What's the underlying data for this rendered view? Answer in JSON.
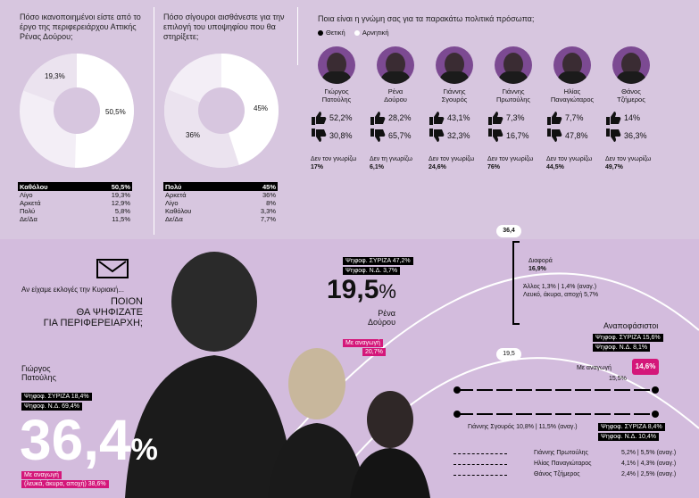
{
  "q1": {
    "question": "Πόσο ικανοποιημένοι είστε από το έργο της περιφερειάρχου Αττικής Ρένας Δούρου;",
    "pie_labels": [
      "50,5%",
      "19,3%"
    ],
    "rows": [
      {
        "label": "Καθόλου",
        "value": "50,5%"
      },
      {
        "label": "Λίγο",
        "value": "19,3%"
      },
      {
        "label": "Αρκετά",
        "value": "12,9%"
      },
      {
        "label": "Πολύ",
        "value": "5,8%"
      },
      {
        "label": "Δε/Δα",
        "value": "11,5%"
      }
    ]
  },
  "q2": {
    "question": "Πόσο σίγουροι αισθάνεστε για την επιλογή του υποψηφίου που θα στηρίξετε;",
    "pie_labels": [
      "45%",
      "36%"
    ],
    "rows": [
      {
        "label": "Πολύ",
        "value": "45%"
      },
      {
        "label": "Αρκετά",
        "value": "36%"
      },
      {
        "label": "Λίγο",
        "value": "8%"
      },
      {
        "label": "Καθόλου",
        "value": "3,3%"
      },
      {
        "label": "Δε/Δα",
        "value": "7,7%"
      }
    ]
  },
  "q3": {
    "question": "Ποια είναι η γνώμη σας για τα παρακάτω πολιτικά πρόσωπα;",
    "legend_positive": "Θετική",
    "legend_negative": "Αρνητική",
    "unknown_label": "Δεν τον γνωρίζω",
    "unknown_label_f": "Δεν τη γνωρίζω",
    "candidates": [
      {
        "name1": "Γιώργος",
        "name2": "Πατούλης",
        "pos": "52,2%",
        "neg": "30,8%",
        "unknown": "17%"
      },
      {
        "name1": "Ρένα",
        "name2": "Δούρου",
        "pos": "28,2%",
        "neg": "65,7%",
        "unknown": "6,1%"
      },
      {
        "name1": "Γιάννης",
        "name2": "Σγουρός",
        "pos": "43,1%",
        "neg": "32,3%",
        "unknown": "24,6%"
      },
      {
        "name1": "Γιάννης",
        "name2": "Πρωτούλης",
        "pos": "7,3%",
        "neg": "16,7%",
        "unknown": "76%"
      },
      {
        "name1": "Ηλίας",
        "name2": "Παναγιώταρος",
        "pos": "7,7%",
        "neg": "47,8%",
        "unknown": "44,5%"
      },
      {
        "name1": "Θάνος",
        "name2": "Τζήμερος",
        "pos": "14%",
        "neg": "36,3%",
        "unknown": "49,7%"
      }
    ]
  },
  "vote": {
    "intro": "Αν είχαμε εκλογές την Κυριακή...",
    "q_line1": "ΠΟΙΟΝ",
    "q_line2": "ΘΑ ΨΗΦΙΖΑΤΕ",
    "q_line3": "ΓΙΑ ΠΕΡΙΦΕΡΕΙΑΡΧΗ;",
    "patoulis": {
      "name1": "Γιώργος",
      "name2": "Πατούλης",
      "syriza": "Ψηφοφ. ΣΥΡΙΖΑ 18,4%",
      "nd": "Ψηφοφ. Ν.Δ. 69,4%",
      "big": "36,4",
      "pct": "%",
      "with_lean": "Με αναγωγή",
      "with_lean2": "(λευκά, άκυρα, αποχή) 38,6%"
    },
    "douroy": {
      "syriza": "Ψηφοφ. ΣΥΡΙΖΑ 47,2%",
      "nd": "Ψηφοφ. Ν.Δ. 3,7%",
      "big": "19,5",
      "pct": "%",
      "name1": "Ρένα",
      "name2": "Δούρου",
      "with_lean": "Με αναγωγή",
      "with_lean_val": "20,7%"
    },
    "scale_top": "36,4",
    "scale_mid": "19,5",
    "diafora_label": "Διαφορά",
    "diafora_val": "16,9%",
    "others_line": "Άλλος 1,3% | 1,4% (αναγ.)",
    "blank_line": "Λευκό, άκυρα, αποχή 5,7%",
    "undecided": {
      "title": "Αναποφάσιστοι",
      "syriza": "Ψηφοφ. ΣΥΡΙΖΑ 15,6%",
      "nd": "Ψηφοφ. Ν.Δ. 8,1%",
      "with_lean": "Με αναγωγή",
      "with_lean_val": "14,6%",
      "base": "15,5%"
    },
    "sgouros": {
      "line": "Γιάννης Σγουρός 10,8% | 11,5% (αναγ.)",
      "syriza": "Ψηφοφ. ΣΥΡΙΖΑ 8,4%",
      "nd": "Ψηφοφ. Ν.Δ. 10,4%"
    },
    "minor": [
      {
        "name": "Γιάννης Πρωτούλης",
        "val": "5,2% | 5,5% (αναγ.)"
      },
      {
        "name": "Ηλίας Παναγιώταρος",
        "val": "4,1% | 4,3% (αναγ.)"
      },
      {
        "name": "Θάνος Τζήμερος",
        "val": "2,4% | 2,5% (αναγ.)"
      }
    ]
  },
  "colors": {
    "purple": "#7c4a92",
    "magenta": "#d4177a",
    "bg": "#d7c6df",
    "black": "#000000",
    "white": "#ffffff"
  },
  "chart_data": [
    {
      "type": "pie",
      "title": "Πόσο ικανοποιημένοι είστε από το έργο της περιφερειάρχου Αττικής Ρένας Δούρου;",
      "categories": [
        "Καθόλου",
        "Λίγο",
        "Αρκετά",
        "Πολύ",
        "Δε/Δα"
      ],
      "values": [
        50.5,
        19.3,
        12.9,
        5.8,
        11.5
      ]
    },
    {
      "type": "pie",
      "title": "Πόσο σίγουροι αισθάνεστε για την επιλογή του υποψηφίου που θα στηρίξετε;",
      "categories": [
        "Πολύ",
        "Αρκετά",
        "Λίγο",
        "Καθόλου",
        "Δε/Δα"
      ],
      "values": [
        45,
        36,
        8,
        3.3,
        7.7
      ]
    },
    {
      "type": "bar",
      "title": "Ποια είναι η γνώμη σας για τα παρακάτω πολιτικά πρόσωπα;",
      "categories": [
        "Γιώργος Πατούλης",
        "Ρένα Δούρου",
        "Γιάννης Σγουρός",
        "Γιάννης Πρωτούλης",
        "Ηλίας Παναγιώταρος",
        "Θάνος Τζήμερος"
      ],
      "series": [
        {
          "name": "Θετική",
          "values": [
            52.2,
            28.2,
            43.1,
            7.3,
            7.7,
            14
          ]
        },
        {
          "name": "Αρνητική",
          "values": [
            30.8,
            65.7,
            32.3,
            16.7,
            47.8,
            36.3
          ]
        }
      ]
    },
    {
      "type": "bar",
      "title": "Αν είχαμε εκλογές την Κυριακή... ΠΟΙΟΝ ΘΑ ΨΗΦΙΖΑΤΕ ΓΙΑ ΠΕΡΙΦΕΡΕΙΑΡΧΗ;",
      "categories": [
        "Γιώργος Πατούλης",
        "Ρένα Δούρου",
        "Γιάννης Σγουρός",
        "Γιάννης Πρωτούλης",
        "Ηλίας Παναγιώταρος",
        "Θάνος Τζήμερος",
        "Άλλος",
        "Αναποφάσιστοι"
      ],
      "values": [
        36.4,
        19.5,
        10.8,
        5.2,
        4.1,
        2.4,
        1.3,
        15.5
      ]
    }
  ]
}
